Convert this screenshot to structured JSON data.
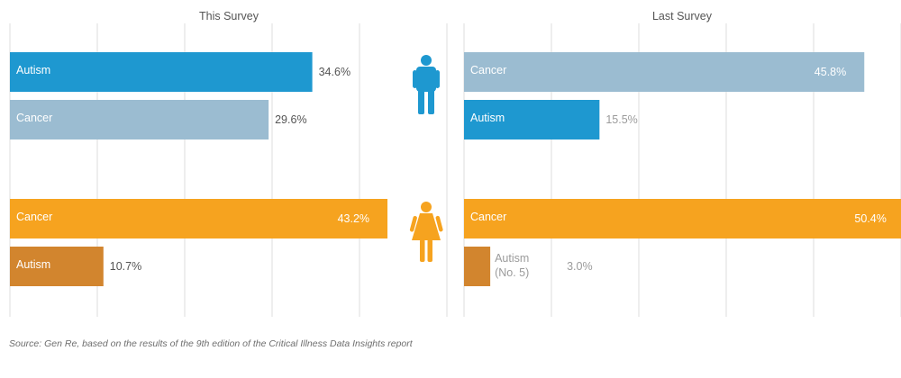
{
  "colors": {
    "male_primary": "#1e98d0",
    "male_secondary": "#9bbcd1",
    "female_primary": "#f6a31f",
    "female_secondary": "#d2852e",
    "grid": "#dcdcdc",
    "label_dark": "#555555",
    "label_light": "#9b9b9b"
  },
  "icons": {
    "male": "male-person-icon",
    "female": "female-person-icon"
  },
  "source": "Source: Gen Re, based on the results of the 9th edition of the Critical Illness Data Insights report",
  "chart_data": [
    {
      "type": "bar",
      "orientation": "horizontal",
      "title": "This Survey",
      "xlim": [
        0,
        50
      ],
      "grid": true,
      "groups": [
        {
          "group": "male",
          "bars": [
            {
              "category": "Autism",
              "value": 34.6,
              "value_label": "34.6%"
            },
            {
              "category": "Cancer",
              "value": 29.6,
              "value_label": "29.6%"
            }
          ]
        },
        {
          "group": "female",
          "bars": [
            {
              "category": "Cancer",
              "value": 43.2,
              "value_label": "43.2%"
            },
            {
              "category": "Autism",
              "value": 10.7,
              "value_label": "10.7%"
            }
          ]
        }
      ]
    },
    {
      "type": "bar",
      "orientation": "horizontal",
      "title": "Last Survey",
      "xlim": [
        0,
        50
      ],
      "grid": true,
      "groups": [
        {
          "group": "male",
          "bars": [
            {
              "category": "Cancer",
              "value": 45.8,
              "value_label": "45.8%"
            },
            {
              "category": "Autism",
              "value": 15.5,
              "value_label": "15.5%"
            }
          ]
        },
        {
          "group": "female",
          "bars": [
            {
              "category": "Cancer",
              "value": 50.4,
              "value_label": "50.4%"
            },
            {
              "category": "Autism (No. 5)",
              "category_lines": [
                "Autism",
                "(No. 5)"
              ],
              "value": 3.0,
              "value_label": "3.0%"
            }
          ]
        }
      ]
    }
  ]
}
